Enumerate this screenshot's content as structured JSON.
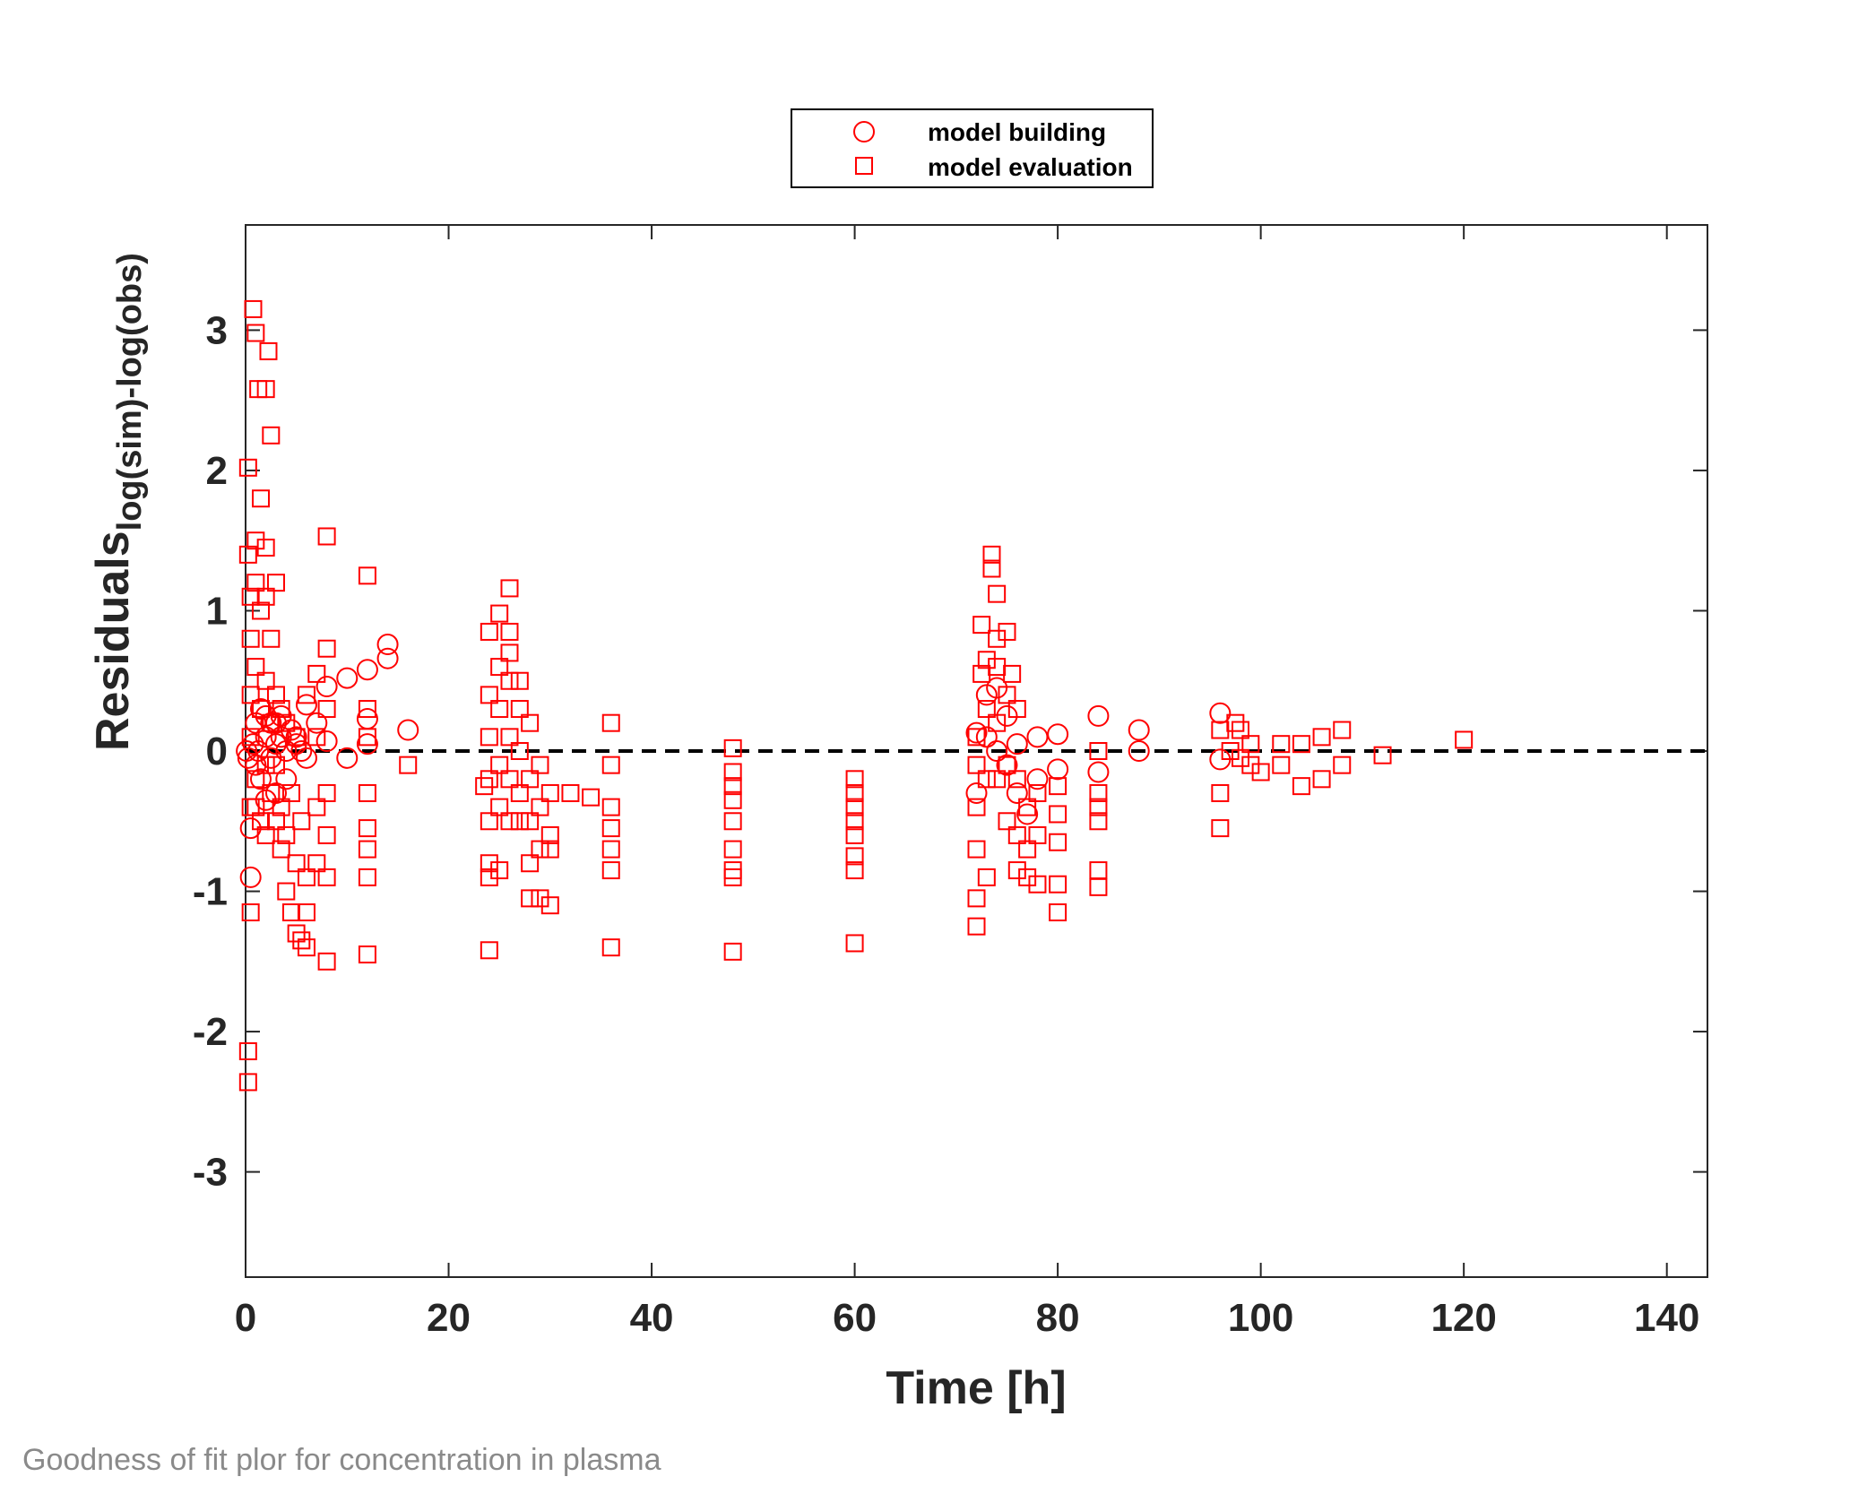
{
  "caption": "Goodness of fit plor for concentration in plasma",
  "chart_data": {
    "type": "scatter",
    "title": "",
    "xlabel": "Time [h]",
    "ylabel_main": "Residuals",
    "ylabel_sub": "log(sim)-log(obs)",
    "xlim": [
      0,
      144
    ],
    "ylim": [
      -3.75,
      3.75
    ],
    "xticks": [
      0,
      20,
      40,
      60,
      80,
      100,
      120,
      140
    ],
    "yticks": [
      -3,
      -2,
      -1,
      0,
      1,
      2,
      3
    ],
    "xtick_labels": [
      "0",
      "20",
      "40",
      "60",
      "80",
      "100",
      "120",
      "140"
    ],
    "ytick_labels": [
      "-3",
      "-2",
      "-1",
      "0",
      "1",
      "2",
      "3"
    ],
    "reference_line": {
      "y": 0,
      "style": "dashed",
      "color": "#000000"
    },
    "legend": {
      "position": "top-center",
      "entries": [
        {
          "label": "model building",
          "marker": "circle"
        },
        {
          "label": "model evaluation",
          "marker": "square"
        }
      ]
    },
    "marker_color": "#ff0000",
    "series": [
      {
        "name": "model building",
        "marker": "circle",
        "points": [
          [
            0.1,
            0.0
          ],
          [
            0.25,
            -0.05
          ],
          [
            0.5,
            -0.9
          ],
          [
            0.5,
            -0.55
          ],
          [
            0.75,
            0.05
          ],
          [
            1,
            0.2
          ],
          [
            1,
            -0.1
          ],
          [
            1.25,
            0.0
          ],
          [
            1.5,
            0.3
          ],
          [
            1.5,
            -0.2
          ],
          [
            2,
            0.25
          ],
          [
            2,
            0.1
          ],
          [
            2,
            -0.35
          ],
          [
            2.5,
            0.2
          ],
          [
            2.5,
            -0.05
          ],
          [
            3,
            0.2
          ],
          [
            3,
            0.05
          ],
          [
            3,
            -0.3
          ],
          [
            3.5,
            0.1
          ],
          [
            3.5,
            0.25
          ],
          [
            4,
            0.0
          ],
          [
            4,
            -0.2
          ],
          [
            4.5,
            0.15
          ],
          [
            5,
            0.1
          ],
          [
            5,
            0.05
          ],
          [
            5.5,
            0.0
          ],
          [
            6,
            0.33
          ],
          [
            6,
            -0.05
          ],
          [
            7,
            0.2
          ],
          [
            8,
            0.46
          ],
          [
            8,
            0.07
          ],
          [
            10,
            0.52
          ],
          [
            10,
            -0.05
          ],
          [
            12,
            0.58
          ],
          [
            12,
            0.23
          ],
          [
            12,
            0.05
          ],
          [
            14,
            0.76
          ],
          [
            14,
            0.66
          ],
          [
            16,
            0.15
          ],
          [
            72,
            0.13
          ],
          [
            72,
            -0.3
          ],
          [
            73,
            0.4
          ],
          [
            73,
            0.1
          ],
          [
            74,
            0.45
          ],
          [
            74,
            0.0
          ],
          [
            75,
            0.25
          ],
          [
            75,
            -0.1
          ],
          [
            76,
            0.05
          ],
          [
            76,
            -0.3
          ],
          [
            77,
            -0.45
          ],
          [
            78,
            0.1
          ],
          [
            78,
            -0.2
          ],
          [
            80,
            0.12
          ],
          [
            80,
            -0.13
          ],
          [
            84,
            0.25
          ],
          [
            84,
            -0.15
          ],
          [
            88,
            0.15
          ],
          [
            88,
            0.0
          ],
          [
            96,
            0.27
          ],
          [
            96,
            -0.06
          ]
        ]
      },
      {
        "name": "model evaluation",
        "marker": "square",
        "points": [
          [
            0.25,
            2.02
          ],
          [
            0.25,
            1.4
          ],
          [
            0.5,
            1.1
          ],
          [
            0.5,
            0.8
          ],
          [
            0.5,
            0.4
          ],
          [
            0.5,
            0.1
          ],
          [
            0.5,
            -0.4
          ],
          [
            0.5,
            -1.15
          ],
          [
            0.25,
            -2.14
          ],
          [
            0.25,
            -2.36
          ],
          [
            0.75,
            3.15
          ],
          [
            1,
            2.98
          ],
          [
            1,
            1.5
          ],
          [
            1,
            1.2
          ],
          [
            1,
            0.6
          ],
          [
            1,
            -0.4
          ],
          [
            1,
            -0.2
          ],
          [
            1.25,
            2.58
          ],
          [
            1.5,
            1.8
          ],
          [
            1.5,
            1.0
          ],
          [
            1.5,
            0.3
          ],
          [
            1.5,
            -0.5
          ],
          [
            2,
            2.58
          ],
          [
            2,
            1.45
          ],
          [
            2,
            1.1
          ],
          [
            2,
            0.5
          ],
          [
            2,
            -0.1
          ],
          [
            2,
            -0.6
          ],
          [
            2.25,
            2.85
          ],
          [
            2.5,
            2.25
          ],
          [
            2.5,
            0.8
          ],
          [
            2.5,
            0.2
          ],
          [
            2.5,
            -0.3
          ],
          [
            3,
            1.2
          ],
          [
            3,
            0.4
          ],
          [
            3,
            -0.1
          ],
          [
            3,
            -0.5
          ],
          [
            3.5,
            0.3
          ],
          [
            3.5,
            -0.4
          ],
          [
            3.5,
            -0.7
          ],
          [
            4,
            0.2
          ],
          [
            4,
            -0.6
          ],
          [
            4,
            -1.0
          ],
          [
            4.5,
            -1.15
          ],
          [
            4.5,
            -0.3
          ],
          [
            5,
            0.1
          ],
          [
            5,
            -0.8
          ],
          [
            5,
            -1.3
          ],
          [
            5.5,
            -1.35
          ],
          [
            5.5,
            -0.5
          ],
          [
            6,
            -1.4
          ],
          [
            6,
            -1.15
          ],
          [
            6,
            0.4
          ],
          [
            6,
            -0.9
          ],
          [
            7,
            0.55
          ],
          [
            7,
            0.1
          ],
          [
            7,
            -0.4
          ],
          [
            7,
            -0.8
          ],
          [
            8,
            1.53
          ],
          [
            8,
            0.73
          ],
          [
            8,
            0.3
          ],
          [
            8,
            -0.3
          ],
          [
            8,
            -0.6
          ],
          [
            8,
            -0.9
          ],
          [
            8,
            -1.5
          ],
          [
            12,
            1.25
          ],
          [
            12,
            0.3
          ],
          [
            12,
            0.1
          ],
          [
            12,
            -0.3
          ],
          [
            12,
            -0.55
          ],
          [
            12,
            -0.7
          ],
          [
            12,
            -0.9
          ],
          [
            12,
            -1.45
          ],
          [
            16,
            -0.1
          ],
          [
            23.5,
            -0.25
          ],
          [
            24,
            0.85
          ],
          [
            24,
            0.4
          ],
          [
            24,
            0.1
          ],
          [
            24,
            -0.2
          ],
          [
            24,
            -0.5
          ],
          [
            24,
            -0.8
          ],
          [
            24,
            -0.9
          ],
          [
            24,
            -1.42
          ],
          [
            25,
            0.98
          ],
          [
            25,
            0.6
          ],
          [
            25,
            0.3
          ],
          [
            25,
            -0.1
          ],
          [
            25,
            -0.4
          ],
          [
            25,
            -0.85
          ],
          [
            26,
            1.16
          ],
          [
            26,
            0.85
          ],
          [
            26,
            0.7
          ],
          [
            26,
            0.5
          ],
          [
            26,
            0.1
          ],
          [
            26,
            -0.2
          ],
          [
            26,
            -0.5
          ],
          [
            27,
            0.5
          ],
          [
            27,
            0.3
          ],
          [
            27,
            0.0
          ],
          [
            27,
            -0.3
          ],
          [
            27,
            -0.5
          ],
          [
            28,
            0.2
          ],
          [
            28,
            -0.2
          ],
          [
            28,
            -0.5
          ],
          [
            28,
            -0.8
          ],
          [
            28,
            -1.05
          ],
          [
            29,
            -0.1
          ],
          [
            29,
            -0.4
          ],
          [
            29,
            -0.7
          ],
          [
            29,
            -1.05
          ],
          [
            30,
            -0.3
          ],
          [
            30,
            -0.6
          ],
          [
            30,
            -0.7
          ],
          [
            30,
            -1.1
          ],
          [
            32,
            -0.3
          ],
          [
            34,
            -0.33
          ],
          [
            36,
            0.2
          ],
          [
            36,
            -0.1
          ],
          [
            36,
            -0.4
          ],
          [
            36,
            -0.55
          ],
          [
            36,
            -0.7
          ],
          [
            36,
            -0.85
          ],
          [
            36,
            -1.4
          ],
          [
            48,
            0.02
          ],
          [
            48,
            -0.15
          ],
          [
            48,
            -0.25
          ],
          [
            48,
            -0.35
          ],
          [
            48,
            -0.5
          ],
          [
            48,
            -0.7
          ],
          [
            48,
            -0.85
          ],
          [
            48,
            -0.9
          ],
          [
            48,
            -1.43
          ],
          [
            60,
            -0.2
          ],
          [
            60,
            -0.3
          ],
          [
            60,
            -0.4
          ],
          [
            60,
            -0.5
          ],
          [
            60,
            -0.6
          ],
          [
            60,
            -0.75
          ],
          [
            60,
            -0.85
          ],
          [
            60,
            -1.37
          ],
          [
            72,
            0.1
          ],
          [
            72,
            -0.1
          ],
          [
            72,
            -0.4
          ],
          [
            72,
            -0.7
          ],
          [
            72,
            -1.05
          ],
          [
            72,
            -1.25
          ],
          [
            72.5,
            0.9
          ],
          [
            72.5,
            0.55
          ],
          [
            73,
            0.65
          ],
          [
            73,
            0.3
          ],
          [
            73,
            -0.2
          ],
          [
            73,
            -0.9
          ],
          [
            73.5,
            1.4
          ],
          [
            73.5,
            1.3
          ],
          [
            74,
            1.12
          ],
          [
            74,
            0.8
          ],
          [
            74,
            0.6
          ],
          [
            74,
            0.2
          ],
          [
            74,
            -0.2
          ],
          [
            75,
            0.85
          ],
          [
            75,
            0.4
          ],
          [
            75,
            -0.1
          ],
          [
            75,
            -0.5
          ],
          [
            75.5,
            0.55
          ],
          [
            76,
            0.3
          ],
          [
            76,
            -0.2
          ],
          [
            76,
            -0.6
          ],
          [
            76,
            -0.85
          ],
          [
            77,
            -0.4
          ],
          [
            77,
            -0.7
          ],
          [
            77,
            -0.9
          ],
          [
            78,
            -0.3
          ],
          [
            78,
            -0.6
          ],
          [
            78,
            -0.95
          ],
          [
            80,
            -0.25
          ],
          [
            80,
            -0.45
          ],
          [
            80,
            -0.65
          ],
          [
            80,
            -0.95
          ],
          [
            80,
            -1.15
          ],
          [
            84,
            0.0
          ],
          [
            84,
            -0.3
          ],
          [
            84,
            -0.4
          ],
          [
            84,
            -0.5
          ],
          [
            84,
            -0.85
          ],
          [
            84,
            -0.97
          ],
          [
            96,
            0.15
          ],
          [
            96,
            -0.3
          ],
          [
            96,
            -0.55
          ],
          [
            97,
            0.0
          ],
          [
            97.5,
            0.2
          ],
          [
            98,
            0.15
          ],
          [
            98,
            -0.05
          ],
          [
            99,
            0.05
          ],
          [
            99,
            -0.1
          ],
          [
            100,
            -0.15
          ],
          [
            102,
            0.05
          ],
          [
            102,
            -0.1
          ],
          [
            104,
            0.05
          ],
          [
            104,
            -0.25
          ],
          [
            106,
            0.1
          ],
          [
            106,
            -0.2
          ],
          [
            108,
            0.15
          ],
          [
            108,
            -0.1
          ],
          [
            112,
            -0.03
          ],
          [
            120,
            0.08
          ]
        ]
      }
    ]
  }
}
